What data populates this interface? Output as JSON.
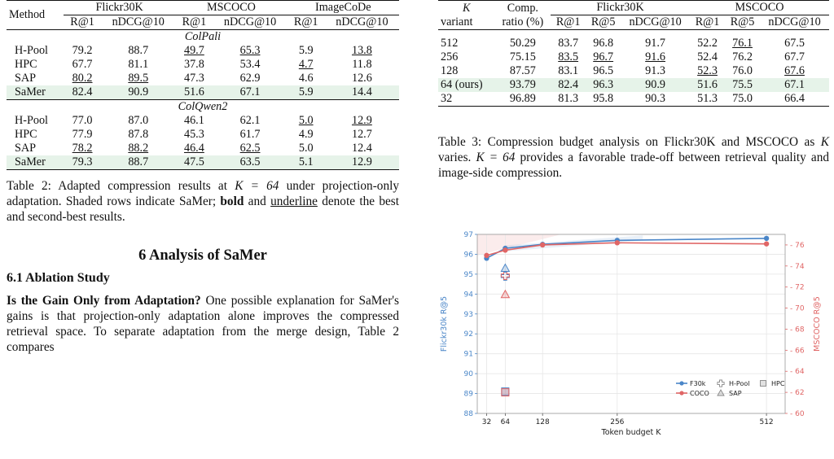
{
  "table2": {
    "header": {
      "method": "Method",
      "groups": [
        "Flickr30K",
        "MSCOCO",
        "ImageCoDe"
      ],
      "metrics": [
        "R@1",
        "nDCG@10",
        "R@1",
        "nDCG@10",
        "R@1",
        "nDCG@10"
      ]
    },
    "sections": [
      {
        "name": "ColPali",
        "rows": [
          {
            "method": "H-Pool",
            "values": [
              "79.2",
              "88.7",
              "49.7",
              "65.3",
              "5.9",
              "13.8"
            ],
            "style": [
              "",
              "",
              "u",
              "u",
              "b",
              "u"
            ],
            "shaded": false
          },
          {
            "method": "HPC",
            "values": [
              "67.7",
              "81.1",
              "37.8",
              "53.4",
              "4.7",
              "11.8"
            ],
            "style": [
              "",
              "",
              "",
              "",
              "u",
              ""
            ],
            "shaded": false
          },
          {
            "method": "SAP",
            "values": [
              "80.2",
              "89.5",
              "47.3",
              "62.9",
              "4.6",
              "12.6"
            ],
            "style": [
              "u",
              "u",
              "",
              "",
              "",
              ""
            ],
            "shaded": false
          },
          {
            "method": "SaMer",
            "values": [
              "82.4",
              "90.9",
              "51.6",
              "67.1",
              "5.9",
              "14.4"
            ],
            "style": [
              "b",
              "b",
              "b",
              "b",
              "b",
              "b"
            ],
            "shaded": true
          }
        ]
      },
      {
        "name": "ColQwen2",
        "rows": [
          {
            "method": "H-Pool",
            "values": [
              "77.0",
              "87.0",
              "46.1",
              "62.1",
              "5.0",
              "12.9"
            ],
            "style": [
              "",
              "",
              "",
              "",
              "u",
              "u"
            ],
            "shaded": false
          },
          {
            "method": "HPC",
            "values": [
              "77.9",
              "87.8",
              "45.3",
              "61.7",
              "4.9",
              "12.7"
            ],
            "style": [
              "",
              "",
              "",
              "",
              "",
              ""
            ],
            "shaded": false
          },
          {
            "method": "SAP",
            "values": [
              "78.2",
              "88.2",
              "46.4",
              "62.5",
              "5.0",
              "12.4"
            ],
            "style": [
              "u",
              "u",
              "u",
              "u",
              "",
              ""
            ],
            "shaded": false
          },
          {
            "method": "SaMer",
            "values": [
              "79.3",
              "88.7",
              "47.5",
              "63.5",
              "5.1",
              "12.9"
            ],
            "style": [
              "b",
              "b",
              "b",
              "b",
              "b",
              "b"
            ],
            "shaded": true
          }
        ]
      }
    ],
    "caption": {
      "part1": "Table 2: Adapted compression results at ",
      "math": "K = 64",
      "part2": " under projection-only adaptation. Shaded rows indicate SaMer; ",
      "bold": "bold",
      "part3": " and ",
      "underline": "underline",
      "part4": " denote the best and second-best results."
    }
  },
  "section6": {
    "title": "6   Analysis of SaMer",
    "subsection": "6.1   Ablation Study",
    "para_bold": "Is the Gain Only from Adaptation?",
    "para_text": "  One possible explanation for SaMer's gains is that projection-only adaptation alone improves the compressed retrieval space. To separate adaptation from the merge design, Table 2 compares"
  },
  "table3": {
    "header": {
      "k": "K",
      "variant": "variant",
      "comp1": "Comp.",
      "comp2": "ratio (%)",
      "groups": [
        "Flickr30K",
        "MSCOCO"
      ],
      "metrics": [
        "R@1",
        "R@5",
        "nDCG@10",
        "R@1",
        "R@5",
        "nDCG@10"
      ]
    },
    "rows": [
      {
        "k": "512",
        "ratio": "50.29",
        "values": [
          "83.7",
          "96.8",
          "91.7",
          "52.2",
          "76.1",
          "67.5"
        ],
        "style": [
          "b",
          "b",
          "b",
          "",
          "u",
          ""
        ],
        "shaded": false
      },
      {
        "k": "256",
        "ratio": "75.15",
        "values": [
          "83.5",
          "96.7",
          "91.6",
          "52.4",
          "76.2",
          "67.7"
        ],
        "style": [
          "u",
          "u",
          "u",
          "b",
          "b",
          "b"
        ],
        "shaded": false
      },
      {
        "k": "128",
        "ratio": "87.57",
        "values": [
          "83.1",
          "96.5",
          "91.3",
          "52.3",
          "76.0",
          "67.6"
        ],
        "style": [
          "",
          "",
          "",
          "u",
          "",
          "u"
        ],
        "shaded": false
      },
      {
        "k": "64 (ours)",
        "ratio": "93.79",
        "values": [
          "82.4",
          "96.3",
          "90.9",
          "51.6",
          "75.5",
          "67.1"
        ],
        "style": [
          "",
          "",
          "",
          "",
          "",
          ""
        ],
        "shaded": true
      },
      {
        "k": "32",
        "ratio": "96.89",
        "values": [
          "81.3",
          "95.8",
          "90.3",
          "51.3",
          "75.0",
          "66.4"
        ],
        "style": [
          "",
          "",
          "",
          "",
          "",
          ""
        ],
        "shaded": false
      }
    ],
    "caption": {
      "part1": "Table 3: Compression budget analysis on Flickr30K and MSCOCO as ",
      "math1": "K",
      "part2": " varies. ",
      "math2": "K = 64",
      "part3": " provides a favorable trade-off between retrieval quality and image-side compression."
    }
  },
  "chart_data": {
    "type": "line",
    "xlabel": "Token budget K",
    "ylabel_left": "Flickr30k R@5",
    "ylabel_right": "MSCOCO R@5",
    "x_ticks": [
      32,
      64,
      128,
      256,
      512
    ],
    "xlim": [
      16,
      544
    ],
    "ylim_left": [
      88,
      97
    ],
    "ylim_right": [
      60,
      77
    ],
    "y_ticks_left": [
      88,
      89,
      90,
      91,
      92,
      93,
      94,
      95,
      96,
      97
    ],
    "y_ticks_right": [
      60,
      62,
      64,
      66,
      68,
      70,
      72,
      74,
      76
    ],
    "grid": true,
    "legend_position": "bottom-right",
    "series": [
      {
        "name": "F30k",
        "axis": "left",
        "color": "#4a86c8",
        "marker": "circle",
        "x": [
          32,
          64,
          128,
          256,
          512
        ],
        "y": [
          95.8,
          96.3,
          96.5,
          96.7,
          96.8
        ]
      },
      {
        "name": "COCO",
        "axis": "right",
        "color": "#e06666",
        "marker": "circle",
        "x": [
          32,
          64,
          128,
          256,
          512
        ],
        "y": [
          75.0,
          75.5,
          76.0,
          76.2,
          76.1
        ]
      }
    ],
    "baselines": [
      {
        "name": "H-Pool",
        "marker": "plus",
        "f30k": 94.9,
        "coco": 73.1
      },
      {
        "name": "SAP",
        "marker": "triangle",
        "f30k": 95.3,
        "coco": 71.3
      },
      {
        "name": "HPC",
        "marker": "square",
        "f30k": 89.1,
        "coco": 62.0
      }
    ],
    "baseline_x": 64,
    "colors": {
      "f30k": "#4a86c8",
      "coco": "#e06666",
      "baseline": "#888888"
    }
  }
}
